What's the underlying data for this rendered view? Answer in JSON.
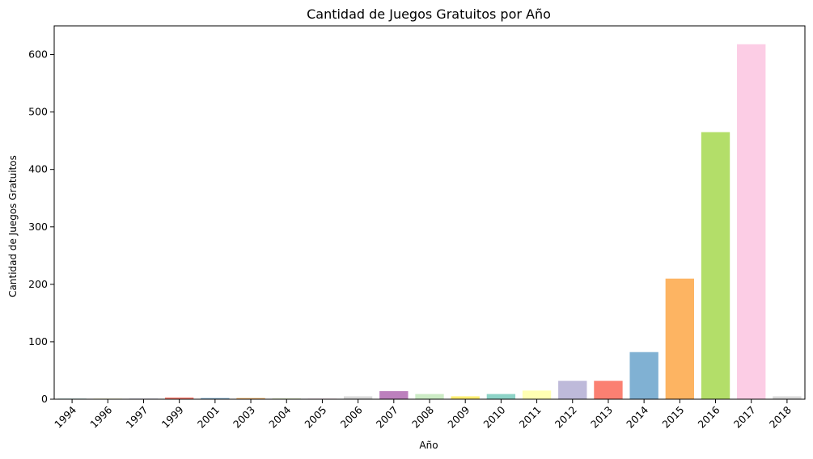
{
  "chart_data": {
    "type": "bar",
    "title": "Cantidad de Juegos Gratuitos por Año",
    "xlabel": "Año",
    "ylabel": "Cantidad de Juegos Gratuitos",
    "categories": [
      "1994",
      "1996",
      "1997",
      "1999",
      "2001",
      "2003",
      "2004",
      "2005",
      "2006",
      "2007",
      "2008",
      "2009",
      "2010",
      "2011",
      "2012",
      "2013",
      "2014",
      "2015",
      "2016",
      "2017",
      "2018"
    ],
    "values": [
      1,
      1,
      1,
      3,
      2,
      2,
      1,
      1,
      5,
      14,
      9,
      5,
      9,
      15,
      32,
      32,
      82,
      210,
      465,
      618,
      5
    ],
    "colors": [
      "#8dd3c7",
      "#ffffb3",
      "#bebada",
      "#fb8072",
      "#80b1d3",
      "#fdb462",
      "#b3de69",
      "#fccde5",
      "#d9d9d9",
      "#bc80bd",
      "#ccebc5",
      "#ffed6f",
      "#8dd3c7",
      "#ffffb3",
      "#bebada",
      "#fb8072",
      "#80b1d3",
      "#fdb462",
      "#b3de69",
      "#fccde5",
      "#d9d9d9"
    ],
    "ylim": [
      0,
      650
    ],
    "yticks": [
      0,
      100,
      200,
      300,
      400,
      500,
      600
    ],
    "grid": false,
    "legend": "none"
  }
}
